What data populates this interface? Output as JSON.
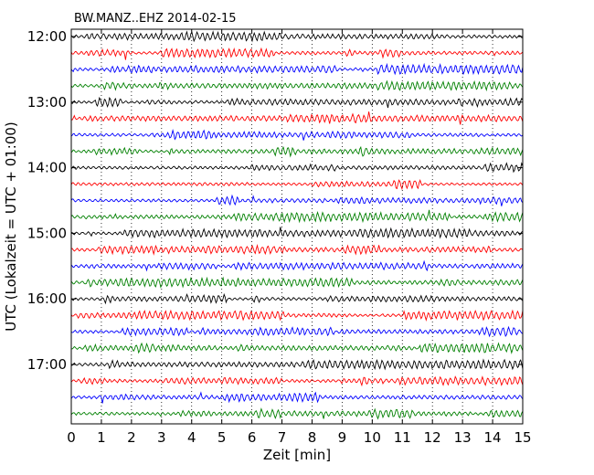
{
  "chart_data": {
    "type": "line",
    "title": "BW.MANZ..EHZ 2014-02-15",
    "xlabel": "Zeit  [min]",
    "ylabel": "UTC (Lokalzeit = UTC + 01:00)",
    "xlim": [
      0,
      15
    ],
    "x_ticks": [
      "0",
      "1",
      "2",
      "3",
      "4",
      "5",
      "6",
      "7",
      "8",
      "9",
      "10",
      "11",
      "12",
      "13",
      "14",
      "15"
    ],
    "y_ticks": [
      "12:00",
      "13:00",
      "14:00",
      "15:00",
      "16:00",
      "17:00"
    ],
    "grid": "vertical dotted",
    "trace_minutes": 15,
    "trace_colors": [
      "#000000",
      "#ff0000",
      "#0000ff",
      "#008000"
    ],
    "traces": [
      "12:00",
      "12:15",
      "12:30",
      "12:45",
      "13:00",
      "13:15",
      "13:30",
      "13:45",
      "14:00",
      "14:15",
      "14:30",
      "14:45",
      "15:00",
      "15:15",
      "15:30",
      "15:45",
      "16:00",
      "16:15",
      "16:30",
      "16:45",
      "17:00",
      "17:15",
      "17:30",
      "17:45"
    ]
  }
}
